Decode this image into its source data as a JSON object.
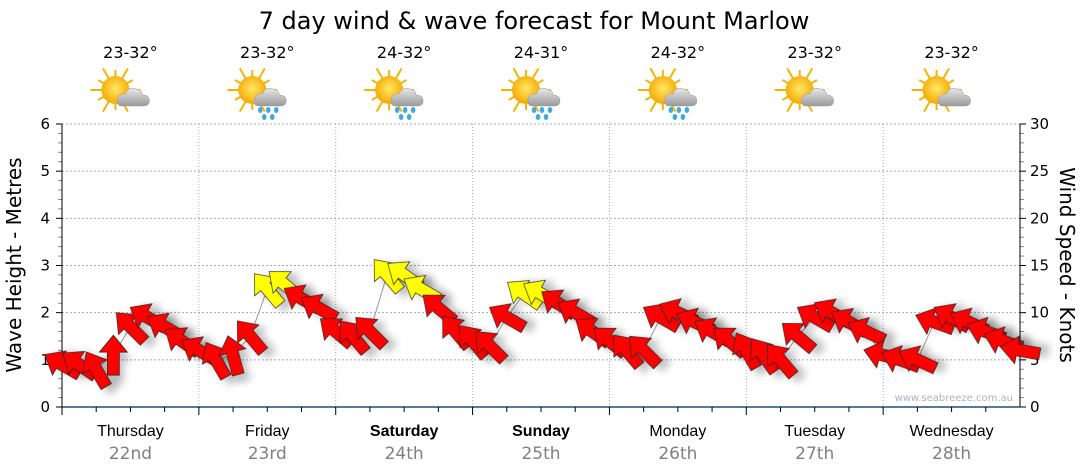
{
  "chart_data": {
    "type": "scatter",
    "title": "7 day wind & wave forecast for Mount Marlow",
    "ylabel_left": "Wave Height - Metres",
    "ylabel_right": "Wind Speed - Knots",
    "ylim_left": [
      0,
      6
    ],
    "ylim_right": [
      0,
      30
    ],
    "yticks_left": [
      "0",
      "1",
      "2",
      "3",
      "4",
      "5",
      "6"
    ],
    "yticks_right": [
      "0",
      "5",
      "10",
      "15",
      "20",
      "25",
      "30"
    ],
    "grid": true,
    "watermark": "www.seabreeze.com.au",
    "days": [
      {
        "day": "Thursday",
        "date": "22nd",
        "temp": "23-32°",
        "icon": "sun-cloud-icon",
        "bold": false
      },
      {
        "day": "Friday",
        "date": "23rd",
        "temp": "23-32°",
        "icon": "sun-cloud-rain-icon",
        "bold": false
      },
      {
        "day": "Saturday",
        "date": "24th",
        "temp": "24-32°",
        "icon": "sun-cloud-rain-icon",
        "bold": true
      },
      {
        "day": "Sunday",
        "date": "25th",
        "temp": "24-31°",
        "icon": "sun-cloud-rain-icon",
        "bold": true
      },
      {
        "day": "Monday",
        "date": "26th",
        "temp": "24-32°",
        "icon": "sun-cloud-rain-icon",
        "bold": false
      },
      {
        "day": "Tuesday",
        "date": "27th",
        "temp": "23-32°",
        "icon": "sun-cloud-icon",
        "bold": false
      },
      {
        "day": "Wednesday",
        "date": "28th",
        "temp": "23-32°",
        "icon": "sun-cloud-icon",
        "bold": false
      }
    ],
    "interval_hours": 3,
    "wind_knots": [
      4.5,
      4.5,
      4,
      5.5,
      8.5,
      9.5,
      8.5,
      7,
      6,
      5,
      5.5,
      7.5,
      12.5,
      13,
      11.5,
      10.5,
      8,
      7.5,
      8,
      14,
      14,
      12.5,
      10.5,
      8,
      7,
      6.5,
      9.5,
      12,
      12,
      11,
      10,
      8,
      7,
      6,
      6,
      9.5,
      10,
      9,
      8,
      7,
      6,
      5.5,
      5,
      7.5,
      9.5,
      10,
      9,
      8,
      5.5,
      5,
      5,
      9,
      9.5,
      9,
      8,
      7,
      6
    ],
    "arrow_heading_deg": [
      300,
      305,
      330,
      0,
      315,
      300,
      300,
      305,
      300,
      330,
      345,
      320,
      320,
      310,
      300,
      300,
      310,
      320,
      315,
      320,
      305,
      300,
      310,
      320,
      320,
      315,
      300,
      305,
      300,
      305,
      300,
      305,
      310,
      320,
      315,
      300,
      295,
      295,
      300,
      310,
      330,
      325,
      320,
      310,
      300,
      300,
      300,
      295,
      285,
      290,
      295,
      290,
      300,
      295,
      290,
      290,
      280
    ],
    "colors": {
      "low": "#ff0000",
      "high": "#ffff00",
      "threshold_knots": 12
    }
  }
}
